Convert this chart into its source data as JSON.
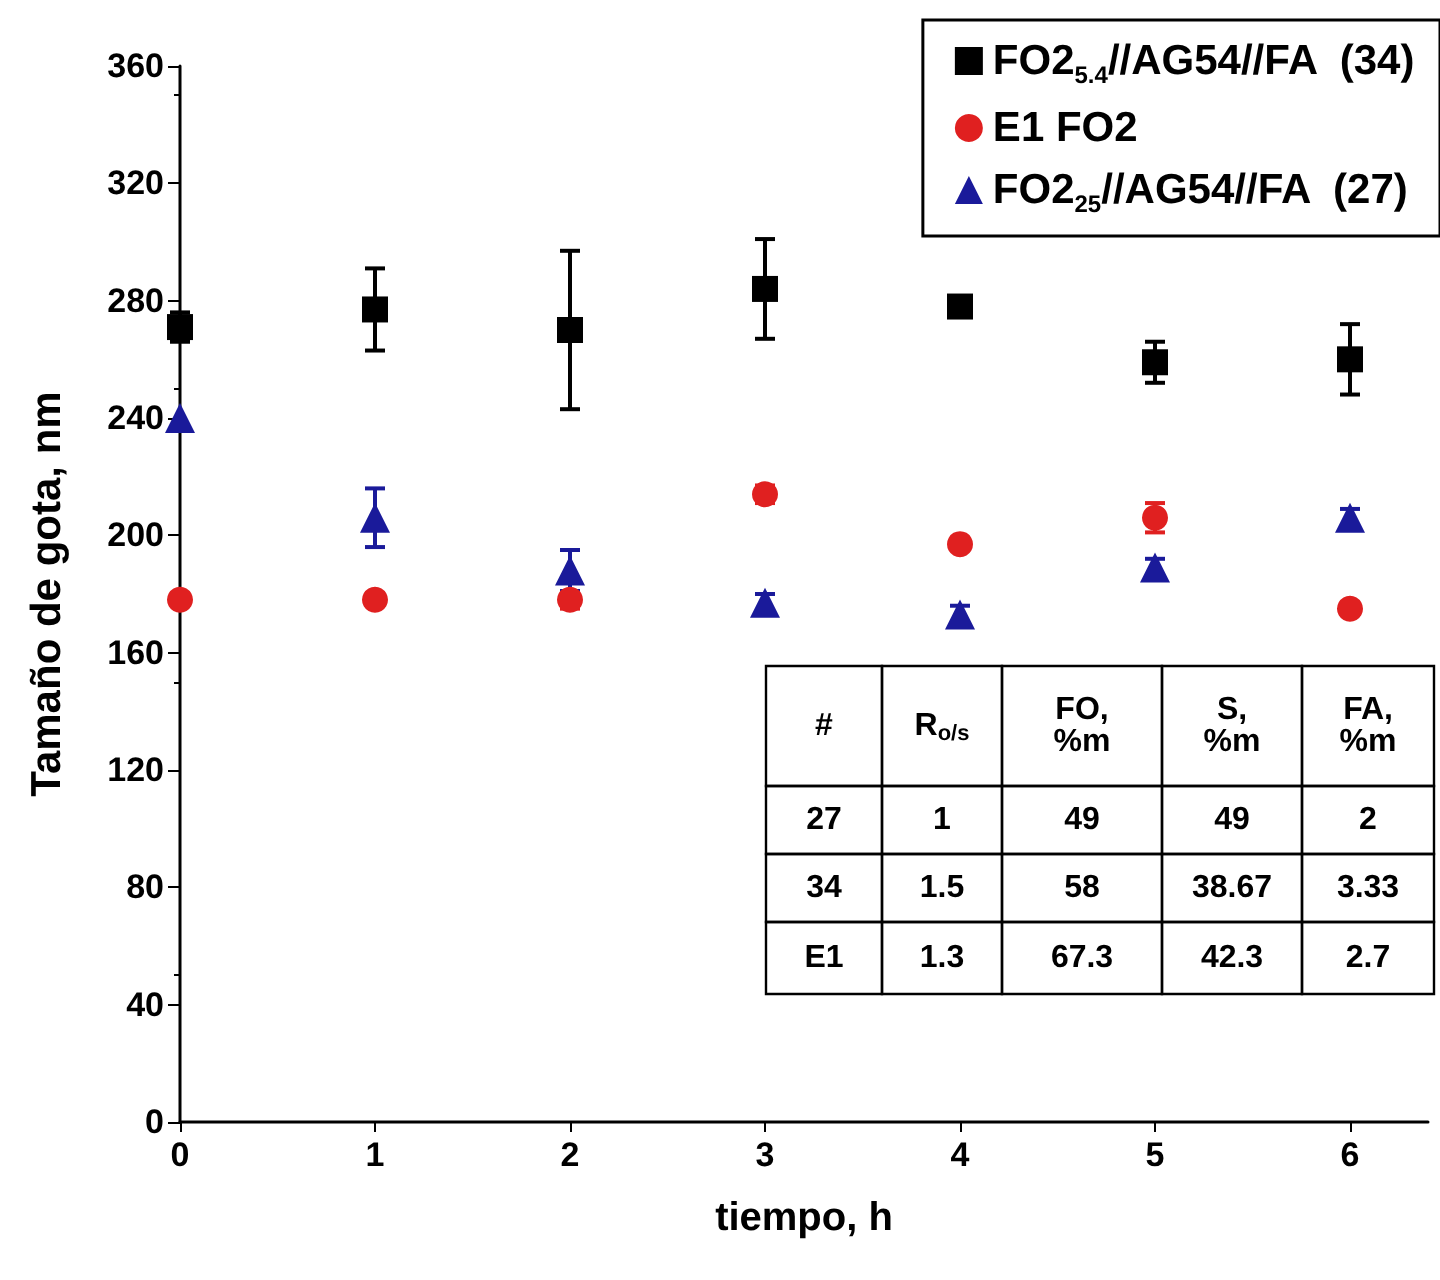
{
  "chart_data": {
    "type": "scatter",
    "xlabel": "tiempo, h",
    "ylabel": "Tamaño de gota, nm",
    "x": [
      0,
      1,
      2,
      3,
      4,
      5,
      6
    ],
    "series": [
      {
        "name": "FO2$_{5.4}$//AG54//FA  (34)",
        "color": "#000000",
        "marker": "square",
        "values": [
          271,
          277,
          270,
          284,
          278,
          259,
          260
        ],
        "errors": [
          5,
          14,
          27,
          17,
          3,
          7,
          12
        ]
      },
      {
        "name": "E1 FO2",
        "color": "#e02020",
        "marker": "circle",
        "values": [
          178,
          178,
          178,
          214,
          197,
          206,
          175
        ],
        "errors": [
          null,
          null,
          3,
          3,
          null,
          5,
          null
        ]
      },
      {
        "name": "FO2$_{25}$//AG54//FA  (27)",
        "color": "#1a1a9a",
        "marker": "triangle",
        "values": [
          240,
          206,
          188,
          177,
          173,
          189,
          206
        ],
        "errors": [
          null,
          10,
          7,
          3,
          3,
          3,
          3
        ]
      }
    ],
    "xlim": [
      0,
      6.4
    ],
    "xticks": [
      0,
      1,
      2,
      3,
      4,
      5,
      6
    ],
    "ylim": [
      0,
      360
    ],
    "yticks": [
      0,
      40,
      80,
      120,
      160,
      200,
      240,
      280,
      320,
      360
    ],
    "grid": false,
    "legend": "top right",
    "annotations": [
      "#",
      "R$_{o/s}$",
      "FO,\n%m",
      "S,\n%m",
      "FA,\n%m",
      "27",
      "1",
      "49",
      "49",
      "2",
      "34",
      "1.5",
      "58",
      "38.67",
      "3.33",
      "E1",
      "1.3",
      "67.3",
      "42.3",
      "2.7"
    ]
  }
}
